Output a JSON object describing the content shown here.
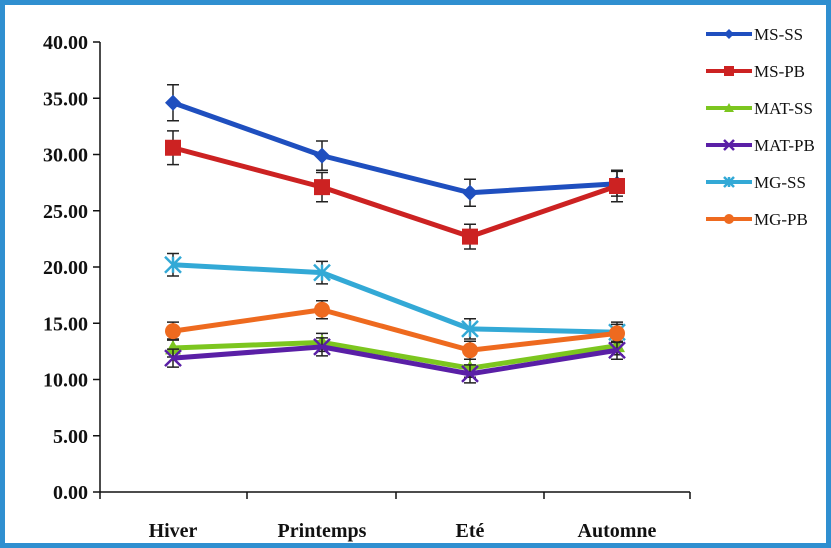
{
  "frame_color": "#2f8fd0",
  "chart_data": {
    "type": "line",
    "title": "",
    "xlabel": "",
    "ylabel": "",
    "categories": [
      "Hiver",
      "Printemps",
      "Eté",
      "Automne"
    ],
    "ylim": [
      0,
      40
    ],
    "yticks": [
      "0.00",
      "5.00",
      "10.00",
      "15.00",
      "20.00",
      "25.00",
      "30.00",
      "35.00",
      "40.00"
    ],
    "grid": false,
    "legend": "right",
    "error_bars": true,
    "series": [
      {
        "name": "MS-SS",
        "color": "#1f4fbf",
        "marker": "diamond",
        "values": [
          34.6,
          29.9,
          26.6,
          27.4
        ],
        "errors": [
          1.6,
          1.3,
          1.2,
          1.1
        ]
      },
      {
        "name": "MS-PB",
        "color": "#cc2222",
        "marker": "square",
        "values": [
          30.6,
          27.1,
          22.7,
          27.2
        ],
        "errors": [
          1.5,
          1.3,
          1.1,
          1.4
        ]
      },
      {
        "name": "MAT-SS",
        "color": "#7cc61f",
        "marker": "triangle",
        "values": [
          12.8,
          13.3,
          11.0,
          13.0
        ],
        "errors": [
          0.8,
          0.8,
          0.8,
          0.8
        ]
      },
      {
        "name": "MAT-PB",
        "color": "#5a1fa6",
        "marker": "cross",
        "values": [
          11.9,
          12.9,
          10.5,
          12.6
        ],
        "errors": [
          0.8,
          0.8,
          0.8,
          0.8
        ]
      },
      {
        "name": "MG-SS",
        "color": "#33a9d6",
        "marker": "star",
        "values": [
          20.2,
          19.5,
          14.5,
          14.2
        ],
        "errors": [
          1.0,
          1.0,
          0.9,
          0.9
        ]
      },
      {
        "name": "MG-PB",
        "color": "#ee6a1f",
        "marker": "circle",
        "values": [
          14.3,
          16.2,
          12.6,
          14.1
        ],
        "errors": [
          0.8,
          0.8,
          0.8,
          0.8
        ]
      }
    ]
  }
}
